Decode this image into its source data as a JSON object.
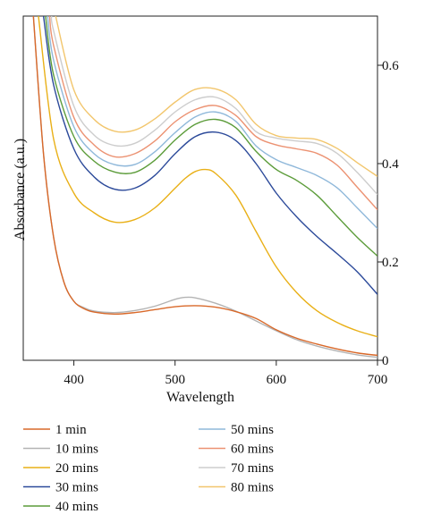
{
  "chart_data": {
    "type": "line",
    "title": "",
    "xlabel": "Wavelength",
    "ylabel": "Absorbance (a.u.)",
    "xlim": [
      350,
      700
    ],
    "ylim": [
      0,
      0.7
    ],
    "x_ticks": [
      400,
      500,
      600,
      700
    ],
    "y_ticks": [
      0,
      0.2,
      0.4,
      0.6
    ],
    "x_tick_labels": [
      "400",
      "500",
      "600",
      "700"
    ],
    "y_tick_labels": [
      "0",
      "0.2",
      "0.4",
      "0.6"
    ],
    "y_axis_side": "right",
    "grid": false,
    "legend_position": "bottom, two columns",
    "series": [
      {
        "name": "1 min",
        "color": "#d9692a",
        "x": [
          360,
          370,
          380,
          390,
          400,
          410,
          420,
          440,
          460,
          480,
          500,
          520,
          540,
          560,
          580,
          600,
          620,
          640,
          660,
          680,
          700
        ],
        "y": [
          0.7,
          0.42,
          0.25,
          0.16,
          0.12,
          0.105,
          0.098,
          0.094,
          0.097,
          0.103,
          0.109,
          0.111,
          0.108,
          0.099,
          0.085,
          0.062,
          0.045,
          0.033,
          0.023,
          0.015,
          0.01
        ]
      },
      {
        "name": "10 mins",
        "color": "#b3b3b3",
        "x": [
          360,
          370,
          380,
          390,
          400,
          410,
          420,
          440,
          460,
          480,
          500,
          510,
          520,
          540,
          560,
          580,
          600,
          620,
          640,
          660,
          680,
          700
        ],
        "y": [
          0.7,
          0.42,
          0.25,
          0.16,
          0.12,
          0.107,
          0.1,
          0.097,
          0.101,
          0.11,
          0.124,
          0.128,
          0.127,
          0.116,
          0.1,
          0.08,
          0.06,
          0.042,
          0.029,
          0.019,
          0.011,
          0.006
        ]
      },
      {
        "name": "20 mins",
        "color": "#e9b017",
        "x": [
          365,
          380,
          400,
          420,
          440,
          460,
          480,
          500,
          510,
          520,
          530,
          540,
          560,
          580,
          600,
          620,
          640,
          660,
          680,
          700
        ],
        "y": [
          0.7,
          0.45,
          0.34,
          0.3,
          0.281,
          0.286,
          0.31,
          0.35,
          0.37,
          0.384,
          0.388,
          0.38,
          0.336,
          0.262,
          0.19,
          0.138,
          0.101,
          0.077,
          0.06,
          0.048
        ]
      },
      {
        "name": "30 mins",
        "color": "#2c4a9a",
        "x": [
          370,
          380,
          400,
          420,
          440,
          460,
          480,
          500,
          520,
          540,
          560,
          580,
          600,
          620,
          640,
          660,
          680,
          700
        ],
        "y": [
          0.7,
          0.56,
          0.43,
          0.373,
          0.348,
          0.35,
          0.376,
          0.42,
          0.455,
          0.464,
          0.447,
          0.4,
          0.34,
          0.292,
          0.252,
          0.217,
          0.18,
          0.134
        ]
      },
      {
        "name": "40 mins",
        "color": "#5c9c3a",
        "x": [
          372,
          380,
          400,
          420,
          440,
          460,
          480,
          500,
          520,
          540,
          560,
          580,
          600,
          620,
          640,
          660,
          680,
          700
        ],
        "y": [
          0.7,
          0.58,
          0.455,
          0.405,
          0.383,
          0.382,
          0.407,
          0.448,
          0.48,
          0.49,
          0.473,
          0.425,
          0.388,
          0.366,
          0.336,
          0.293,
          0.25,
          0.212
        ]
      },
      {
        "name": "50 mins",
        "color": "#8fb8da",
        "x": [
          374,
          380,
          400,
          420,
          440,
          460,
          480,
          500,
          520,
          540,
          560,
          580,
          600,
          620,
          640,
          660,
          680,
          700
        ],
        "y": [
          0.7,
          0.61,
          0.475,
          0.42,
          0.398,
          0.398,
          0.424,
          0.463,
          0.495,
          0.505,
          0.486,
          0.436,
          0.408,
          0.392,
          0.376,
          0.351,
          0.31,
          0.268
        ]
      },
      {
        "name": "60 mins",
        "color": "#ec9272",
        "x": [
          376,
          380,
          400,
          420,
          440,
          460,
          480,
          500,
          520,
          540,
          560,
          580,
          600,
          620,
          640,
          660,
          680,
          700
        ],
        "y": [
          0.7,
          0.64,
          0.494,
          0.438,
          0.414,
          0.42,
          0.446,
          0.485,
          0.51,
          0.518,
          0.498,
          0.455,
          0.438,
          0.43,
          0.421,
          0.397,
          0.352,
          0.306
        ]
      },
      {
        "name": "70 mins",
        "color": "#cdcdcd",
        "x": [
          378,
          380,
          400,
          420,
          440,
          460,
          480,
          500,
          520,
          540,
          560,
          580,
          600,
          620,
          640,
          660,
          680,
          700
        ],
        "y": [
          0.7,
          0.67,
          0.517,
          0.458,
          0.437,
          0.441,
          0.468,
          0.505,
          0.53,
          0.535,
          0.512,
          0.465,
          0.452,
          0.446,
          0.441,
          0.421,
          0.382,
          0.337
        ]
      },
      {
        "name": "80 mins",
        "color": "#f2c66d",
        "x": [
          382,
          400,
          420,
          440,
          460,
          480,
          500,
          520,
          540,
          560,
          580,
          600,
          620,
          640,
          660,
          680,
          700
        ],
        "y": [
          0.7,
          0.55,
          0.49,
          0.466,
          0.468,
          0.491,
          0.525,
          0.551,
          0.552,
          0.53,
          0.48,
          0.457,
          0.452,
          0.449,
          0.431,
          0.402,
          0.374
        ]
      }
    ]
  }
}
